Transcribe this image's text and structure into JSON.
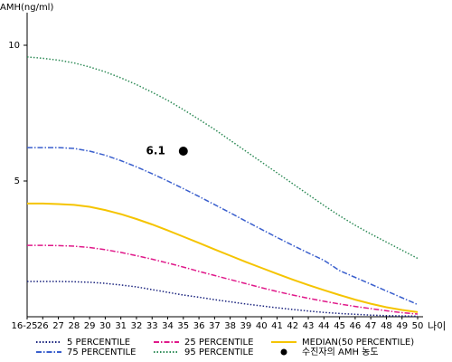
{
  "chart_data": {
    "type": "line",
    "y_axis_label": "AMH(ng/ml)",
    "x_axis_label": "나이",
    "categories": [
      "16-25",
      "26",
      "27",
      "28",
      "29",
      "30",
      "31",
      "32",
      "33",
      "34",
      "35",
      "36",
      "37",
      "38",
      "39",
      "40",
      "41",
      "42",
      "43",
      "44",
      "45",
      "46",
      "47",
      "48",
      "49",
      "50"
    ],
    "ylim": [
      0,
      11.2
    ],
    "yticks": [
      5,
      10
    ],
    "series": [
      {
        "name": "5 PERCENTILE",
        "color": "#1a237e",
        "style": "dotted",
        "values": [
          1.3,
          1.3,
          1.3,
          1.29,
          1.27,
          1.23,
          1.17,
          1.1,
          1.0,
          0.9,
          0.8,
          0.72,
          0.63,
          0.55,
          0.47,
          0.4,
          0.33,
          0.27,
          0.21,
          0.16,
          0.12,
          0.09,
          0.06,
          0.04,
          0.03,
          0.02
        ]
      },
      {
        "name": "25 PERCENTILE",
        "color": "#e0198a",
        "style": "dashdot",
        "values": [
          2.63,
          2.63,
          2.62,
          2.6,
          2.55,
          2.47,
          2.37,
          2.25,
          2.12,
          1.98,
          1.83,
          1.67,
          1.52,
          1.37,
          1.22,
          1.07,
          0.93,
          0.8,
          0.68,
          0.57,
          0.47,
          0.38,
          0.3,
          0.22,
          0.15,
          0.1
        ]
      },
      {
        "name": "MEDIAN(50 PERCENTILE)",
        "color": "#f5c400",
        "style": "solid",
        "values": [
          4.17,
          4.17,
          4.15,
          4.12,
          4.05,
          3.93,
          3.78,
          3.6,
          3.4,
          3.18,
          2.95,
          2.72,
          2.48,
          2.25,
          2.02,
          1.8,
          1.58,
          1.37,
          1.17,
          0.98,
          0.8,
          0.63,
          0.48,
          0.35,
          0.25,
          0.17
        ]
      },
      {
        "name": "75 PERCENTILE",
        "color": "#3a5fcd",
        "style": "dashdot",
        "values": [
          6.23,
          6.23,
          6.23,
          6.2,
          6.1,
          5.95,
          5.75,
          5.52,
          5.27,
          5.0,
          4.72,
          4.43,
          4.13,
          3.83,
          3.52,
          3.22,
          2.92,
          2.63,
          2.35,
          2.08,
          1.7,
          1.45,
          1.2,
          0.95,
          0.7,
          0.45
        ]
      },
      {
        "name": "95 PERCENTILE",
        "color": "#2e8b57",
        "style": "dotted",
        "values": [
          9.57,
          9.52,
          9.45,
          9.35,
          9.2,
          9.02,
          8.8,
          8.55,
          8.27,
          7.97,
          7.63,
          7.27,
          6.9,
          6.5,
          6.1,
          5.7,
          5.3,
          4.9,
          4.5,
          4.1,
          3.72,
          3.37,
          3.05,
          2.75,
          2.45,
          2.15
        ]
      }
    ],
    "marker": {
      "name": "수진자의 AMH 농도",
      "x": "35",
      "value": 6.1,
      "color": "#000000"
    }
  }
}
